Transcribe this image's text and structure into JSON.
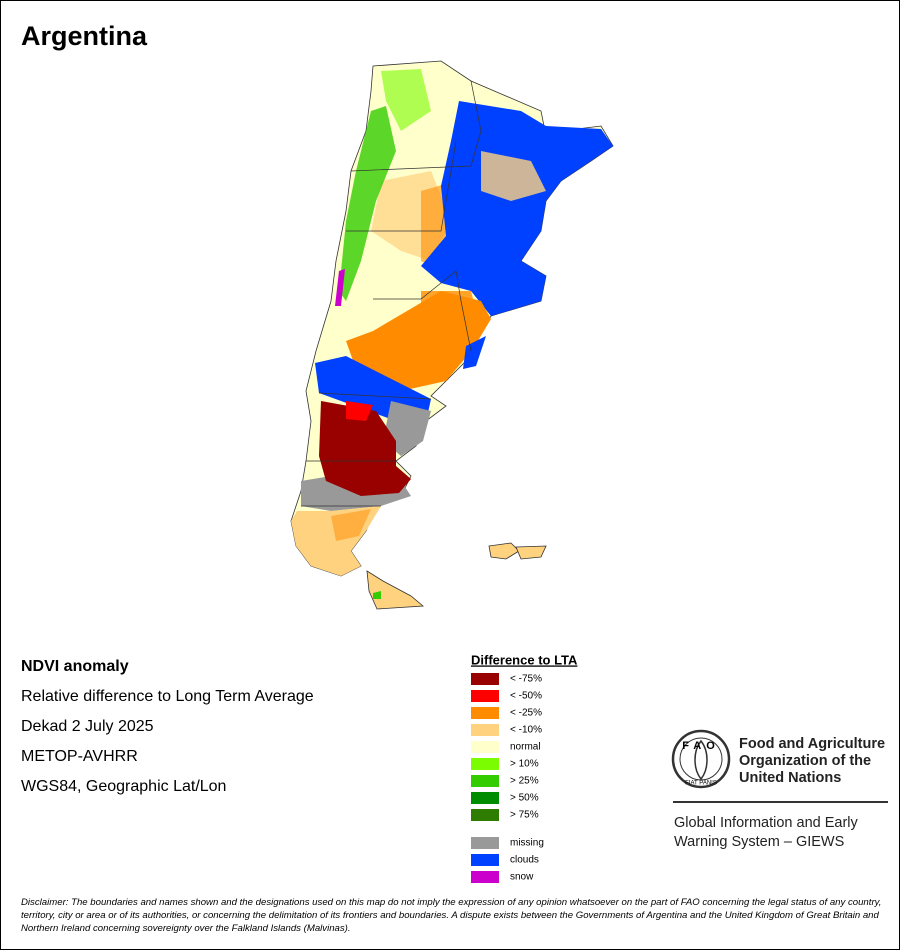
{
  "title": "Argentina",
  "info": [
    "NDVI anomaly",
    "Relative difference to Long Term Average",
    "Dekad 2 July 2025",
    "METOP-AVHRR",
    "WGS84, Geographic Lat/Lon"
  ],
  "legend": {
    "title": "Difference to LTA",
    "items": [
      {
        "label": "< -75%",
        "color": "#990000"
      },
      {
        "label": "< -50%",
        "color": "#ff0000"
      },
      {
        "label": "< -25%",
        "color": "#ff8c00"
      },
      {
        "label": "< -10%",
        "color": "#ffd27f"
      },
      {
        "label": "normal",
        "color": "#ffffcc"
      },
      {
        "label": "> 10%",
        "color": "#7cfc00"
      },
      {
        "label": "> 25%",
        "color": "#33cc00"
      },
      {
        "label": "> 50%",
        "color": "#008c00"
      },
      {
        "label": "> 75%",
        "color": "#2e7d00"
      }
    ],
    "extra": [
      {
        "label": "missing",
        "color": "#999999"
      },
      {
        "label": "clouds",
        "color": "#0040ff"
      },
      {
        "label": "snow",
        "color": "#cc00cc"
      }
    ]
  },
  "logo": {
    "emblem": "FAO",
    "motto": "FIAT PANIS",
    "organization": [
      "Food and Agriculture",
      "Organization of the",
      "United Nations"
    ],
    "system": [
      "Global Information and Early",
      "Warning System – GIEWS"
    ]
  },
  "disclaimer": "Disclaimer: The boundaries and names shown and the designations used on this map do not imply the expression of any opinion whatsoever on the part of FAO concerning the legal status of any country, territory, city or area or of its authorities, or concerning the delimitation of its frontiers and boundaries. A dispute exists between the Governments of Argentina and the United Kingdom of Great Britain and Northern Ireland concerning sovereignty over the Falkland Islands (Malvinas)."
}
